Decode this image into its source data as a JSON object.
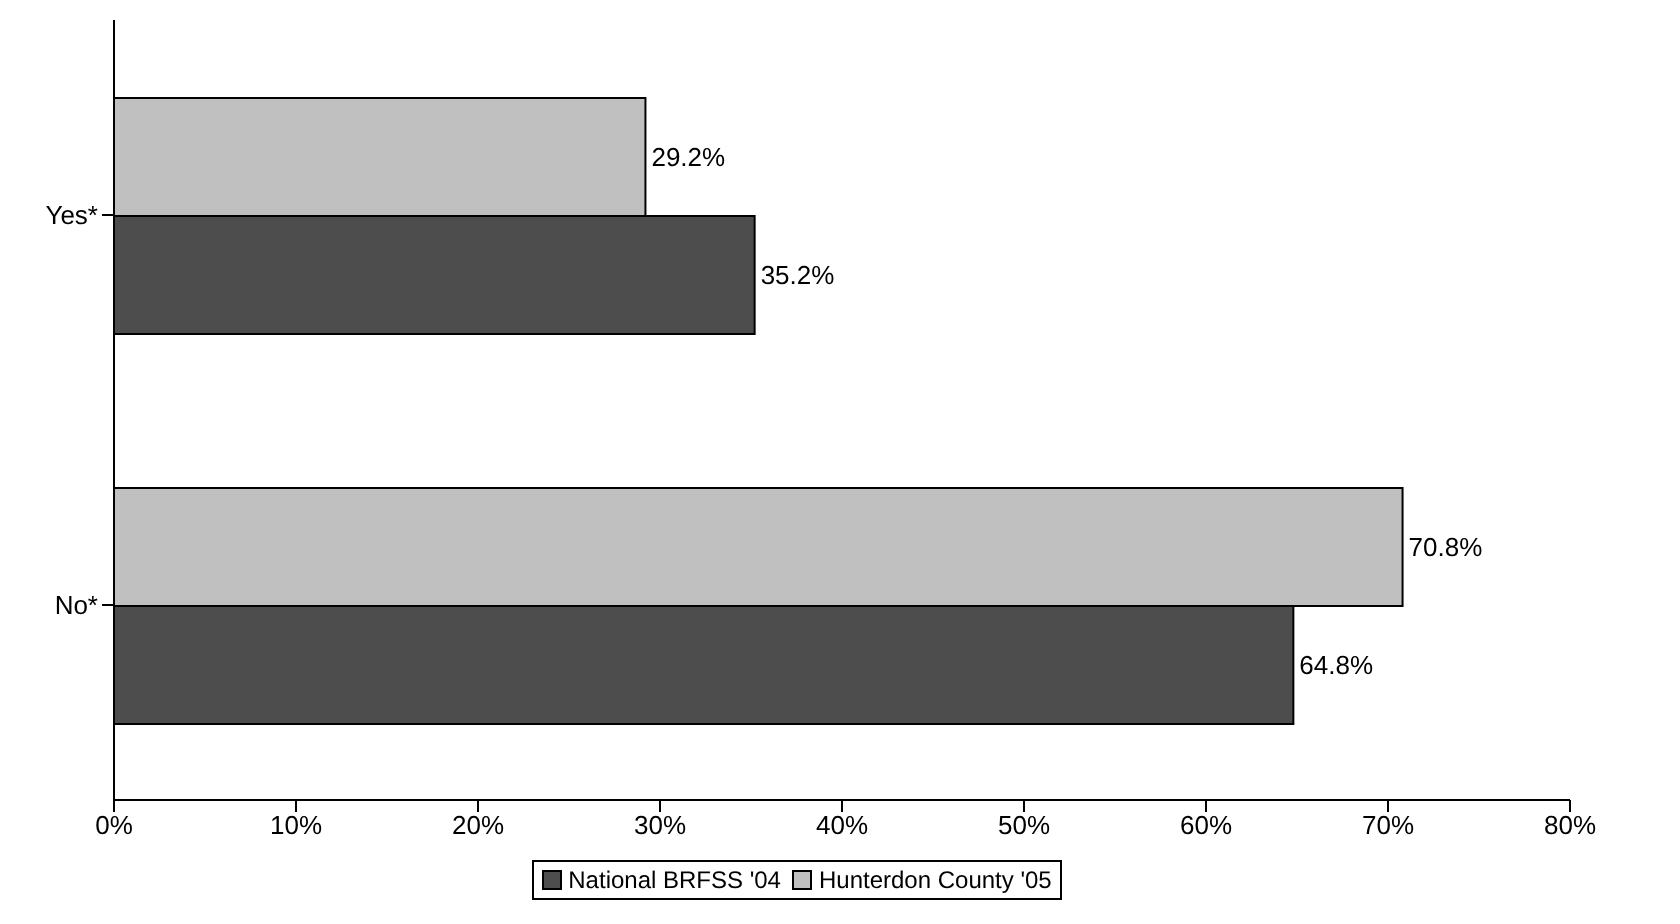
{
  "chart_data": {
    "type": "bar",
    "orientation": "horizontal",
    "categories": [
      "Yes*",
      "No*"
    ],
    "series": [
      {
        "name": "National BRFSS '04",
        "color": "#4d4d4d",
        "values": [
          35.2,
          64.8
        ],
        "value_labels": [
          "35.2%",
          "64.8%"
        ]
      },
      {
        "name": "Hunterdon County '05",
        "color": "#c0c0c0",
        "values": [
          29.2,
          70.8
        ],
        "value_labels": [
          "29.2%",
          "70.8%"
        ]
      }
    ],
    "xlim": [
      0,
      80
    ],
    "xticks": [
      {
        "value": 0,
        "label": "0%"
      },
      {
        "value": 10,
        "label": "10%"
      },
      {
        "value": 20,
        "label": "20%"
      },
      {
        "value": 30,
        "label": "30%"
      },
      {
        "value": 40,
        "label": "40%"
      },
      {
        "value": 50,
        "label": "50%"
      },
      {
        "value": 60,
        "label": "60%"
      },
      {
        "value": 70,
        "label": "70%"
      },
      {
        "value": 80,
        "label": "80%"
      }
    ],
    "grid": false,
    "legend": "bottom"
  }
}
